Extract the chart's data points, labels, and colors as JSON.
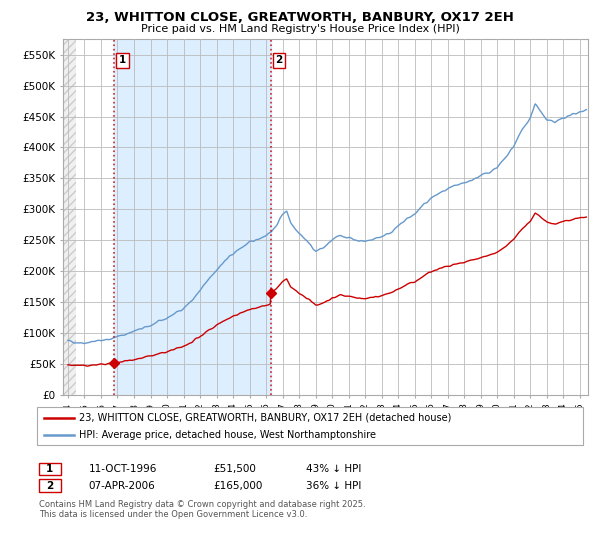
{
  "title": "23, WHITTON CLOSE, GREATWORTH, BANBURY, OX17 2EH",
  "subtitle": "Price paid vs. HM Land Registry's House Price Index (HPI)",
  "ylabel_ticks": [
    "£0",
    "£50K",
    "£100K",
    "£150K",
    "£200K",
    "£250K",
    "£300K",
    "£350K",
    "£400K",
    "£450K",
    "£500K",
    "£550K"
  ],
  "ytick_values": [
    0,
    50000,
    100000,
    150000,
    200000,
    250000,
    300000,
    350000,
    400000,
    450000,
    500000,
    550000
  ],
  "ylim": [
    0,
    575000
  ],
  "xlim_left": 1993.7,
  "xlim_right": 2025.5,
  "purchase1_date": "11-OCT-1996",
  "purchase1_price": 51500,
  "purchase1_price_str": "£51,500",
  "purchase1_pct": "43% ↓ HPI",
  "purchase1_x": 1996.78,
  "purchase2_date": "07-APR-2006",
  "purchase2_price": 165000,
  "purchase2_price_str": "£165,000",
  "purchase2_pct": "36% ↓ HPI",
  "purchase2_x": 2006.27,
  "legend_house": "23, WHITTON CLOSE, GREATWORTH, BANBURY, OX17 2EH (detached house)",
  "legend_hpi": "HPI: Average price, detached house, West Northamptonshire",
  "footnote": "Contains HM Land Registry data © Crown copyright and database right 2025.\nThis data is licensed under the Open Government Licence v3.0.",
  "house_color": "#cc0000",
  "hpi_color": "#6699cc",
  "vline_color": "#cc0000",
  "grid_color": "#bbbbbb",
  "background_color": "#ffffff",
  "plot_bg_color": "#ffffff",
  "shade_color": "#ddeeff",
  "hatch_color": "#cccccc"
}
